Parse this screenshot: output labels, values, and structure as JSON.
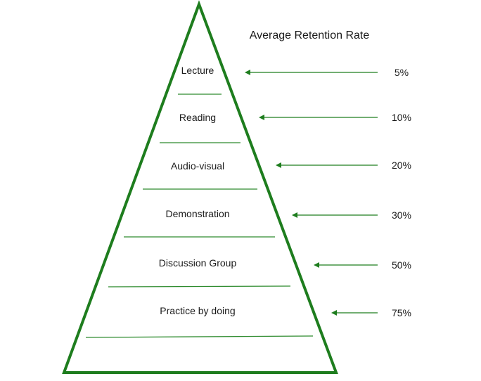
{
  "title": "Average Retention Rate",
  "colors": {
    "outline": "#1e7d1e",
    "divider": "#2e8b2e",
    "arrow": "#1e7d1e",
    "text": "#1a1a1a"
  },
  "levels": [
    {
      "label": "Lecture",
      "rate": "5%"
    },
    {
      "label": "Reading",
      "rate": "10%"
    },
    {
      "label": "Audio-visual",
      "rate": "20%"
    },
    {
      "label": "Demonstration",
      "rate": "30%"
    },
    {
      "label": "Discussion Group",
      "rate": "50%"
    },
    {
      "label": "Practice by doing",
      "rate": "75%"
    }
  ]
}
